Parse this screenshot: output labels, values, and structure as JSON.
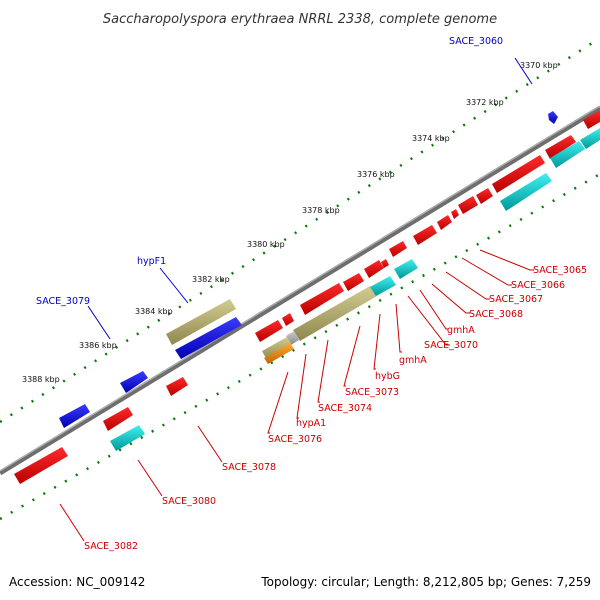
{
  "title": "Saccharopolyspora erythraea NRRL 2338, complete genome",
  "footer": {
    "accession": "Accession: NC_009142",
    "summary": "Topology: circular; Length: 8,212,805 bp; Genes: 7,259"
  },
  "colors": {
    "forward_cds": "#0000ee",
    "reverse_cds": "#ee0000",
    "khaki_feature": "#b8b070",
    "cyan_feature": "#00cccc",
    "orange_feature": "#ee8800",
    "grey_feature": "#aaaaaa",
    "backbone": "#808080",
    "tick_mark": "#006600",
    "forward_label": "#0000cc",
    "reverse_label": "#cc0000"
  },
  "ticks": [
    {
      "label": "3370 kbp"
    },
    {
      "label": "3372 kbp"
    },
    {
      "label": "3374 kbp"
    },
    {
      "label": "3376 kbp"
    },
    {
      "label": "3378 kbp"
    },
    {
      "label": "3380 kbp"
    },
    {
      "label": "3382 kbp"
    },
    {
      "label": "3384 kbp"
    },
    {
      "label": "3386 kbp"
    },
    {
      "label": "3388 kbp"
    }
  ],
  "forward_labels": [
    {
      "text": "SACE_3060"
    },
    {
      "text": "hypF1"
    },
    {
      "text": "SACE_3079"
    }
  ],
  "reverse_labels": [
    {
      "text": "SACE_3065"
    },
    {
      "text": "SACE_3066"
    },
    {
      "text": "SACE_3067"
    },
    {
      "text": "SACE_3068"
    },
    {
      "text": "gmhA"
    },
    {
      "text": "SACE_3070"
    },
    {
      "text": "gmhA"
    },
    {
      "text": "hybG"
    },
    {
      "text": "SACE_3073"
    },
    {
      "text": "SACE_3074"
    },
    {
      "text": "hypA1"
    },
    {
      "text": "SACE_3076"
    },
    {
      "text": "SACE_3078"
    },
    {
      "text": "SACE_3080"
    },
    {
      "text": "SACE_3082"
    }
  ]
}
